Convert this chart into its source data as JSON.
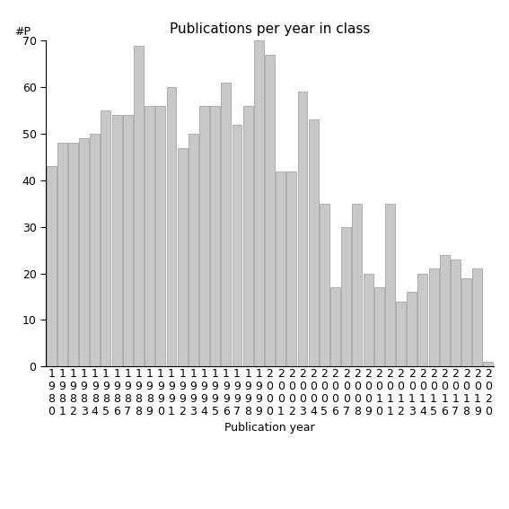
{
  "title": "Publications per year in class",
  "xlabel": "Publication year",
  "ylabel": "#P",
  "bar_color": "#c8c8c8",
  "edge_color": "#999999",
  "years": [
    "1980",
    "1981",
    "1982",
    "1983",
    "1984",
    "1985",
    "1986",
    "1987",
    "1988",
    "1989",
    "1990",
    "1991",
    "1992",
    "1993",
    "1994",
    "1995",
    "1996",
    "1997",
    "1998",
    "1999",
    "2000",
    "2001",
    "2002",
    "2003",
    "2004",
    "2005",
    "2006",
    "2007",
    "2008",
    "2009",
    "2010",
    "2011",
    "2012",
    "2013",
    "2014",
    "2015",
    "2016",
    "2017",
    "2018",
    "2019",
    "2020"
  ],
  "values": [
    43,
    48,
    48,
    49,
    50,
    55,
    54,
    54,
    69,
    56,
    56,
    60,
    47,
    50,
    56,
    56,
    61,
    52,
    56,
    70,
    67,
    42,
    42,
    59,
    53,
    35,
    17,
    30,
    35,
    20,
    17,
    35,
    14,
    16,
    20,
    21,
    24,
    23,
    19,
    21,
    1
  ],
  "ylim": [
    0,
    70
  ],
  "yticks": [
    0,
    10,
    20,
    30,
    40,
    50,
    60,
    70
  ],
  "background_color": "#ffffff",
  "title_fontsize": 11,
  "label_fontsize": 9,
  "tick_fontsize": 9,
  "ylabel_fontsize": 9
}
